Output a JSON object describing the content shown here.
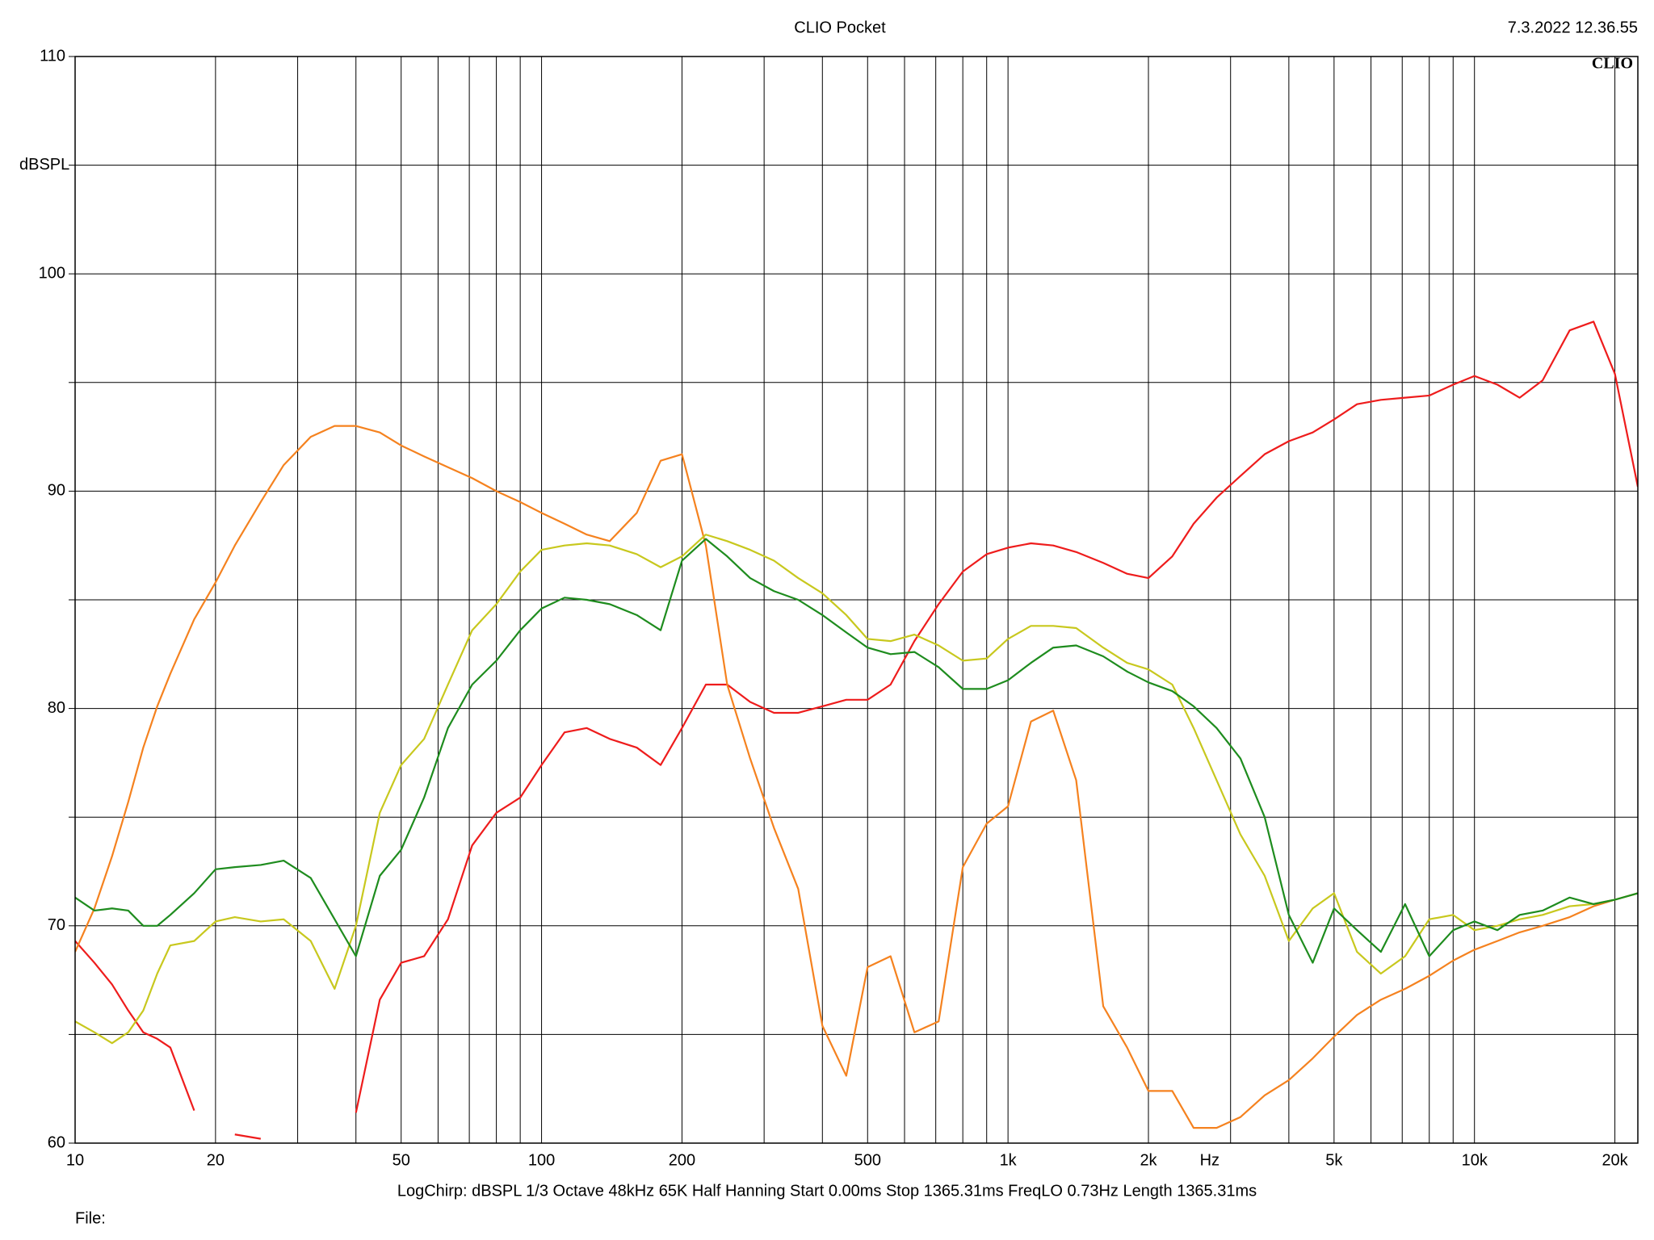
{
  "chart_data": {
    "type": "line",
    "title": "CLIO Pocket",
    "date": "7.3.2022 12.36.55",
    "logo": "CLIO",
    "ylabel": "dBSPL",
    "xlabel": "Hz",
    "footer": "LogChirp:  dBSPL   1/3 Octave   48kHz   65K   Half Hanning   Start 0.00ms    Stop 1365.31ms    FreqLO 0.73Hz    Length 1365.31ms",
    "file_label": "File:",
    "xscale": "log",
    "grid": true,
    "xlim": [
      10,
      22400
    ],
    "ylim": [
      60,
      110
    ],
    "yticks": [
      60,
      70,
      80,
      90,
      100,
      110
    ],
    "y_minor_grid": [
      65,
      75,
      85,
      95,
      105
    ],
    "xticks": [
      10,
      20,
      50,
      100,
      200,
      500,
      {
        "value": 1000,
        "label": "1k"
      },
      {
        "value": 2000,
        "label": "2k"
      },
      {
        "value": 5000,
        "label": "5k"
      },
      {
        "value": 10000,
        "label": "10k"
      },
      {
        "value": 20000,
        "label": "20k"
      }
    ],
    "x_minor_grid": [
      30,
      40,
      60,
      70,
      80,
      90,
      300,
      400,
      600,
      700,
      800,
      900,
      3000,
      4000,
      6000,
      7000,
      8000,
      9000
    ],
    "x": [
      10,
      11,
      12,
      13,
      14,
      15,
      16,
      18,
      20,
      22,
      25,
      28,
      32,
      36,
      40,
      45,
      50,
      56,
      63,
      71,
      80,
      90,
      100,
      112,
      125,
      140,
      160,
      180,
      200,
      225,
      250,
      280,
      315,
      355,
      400,
      450,
      500,
      560,
      630,
      710,
      800,
      900,
      1000,
      1120,
      1250,
      1400,
      1600,
      1800,
      2000,
      2250,
      2500,
      2800,
      3150,
      3550,
      4000,
      4500,
      5000,
      5600,
      6300,
      7100,
      8000,
      9000,
      10000,
      11200,
      12500,
      14000,
      16000,
      18000,
      20000,
      22400
    ],
    "series": [
      {
        "color": "#ee1c1c",
        "values": [
          69.3,
          68.3,
          67.3,
          66.1,
          65.1,
          64.8,
          64.4,
          61.5,
          null,
          60.4,
          60.2,
          null,
          null,
          null,
          61.4,
          66.6,
          68.3,
          68.6,
          70.3,
          73.7,
          75.2,
          75.9,
          77.4,
          78.9,
          79.1,
          78.6,
          78.2,
          77.4,
          79.1,
          81.1,
          81.1,
          80.3,
          79.8,
          79.8,
          80.1,
          80.4,
          80.4,
          81.1,
          83.1,
          84.8,
          86.3,
          87.1,
          87.4,
          87.6,
          87.5,
          87.2,
          86.7,
          86.2,
          86.0,
          87.0,
          88.5,
          89.7,
          90.7,
          91.7,
          92.3,
          92.7,
          93.3,
          94.0,
          94.2,
          94.3,
          94.4,
          94.9,
          95.3,
          94.9,
          94.3,
          95.1,
          97.4,
          97.8,
          95.4,
          90.2
        ]
      },
      {
        "color": "#f5821f",
        "values": [
          68.8,
          70.8,
          73.2,
          75.7,
          78.2,
          80.1,
          81.6,
          84.1,
          85.8,
          87.5,
          89.5,
          91.2,
          92.5,
          93.0,
          93.0,
          92.7,
          92.1,
          91.6,
          91.1,
          90.6,
          90.0,
          89.5,
          89.0,
          88.5,
          88.0,
          87.7,
          89.0,
          91.4,
          91.7,
          87.5,
          81.1,
          77.7,
          74.5,
          71.7,
          65.4,
          63.1,
          68.1,
          68.6,
          65.1,
          65.6,
          72.7,
          74.7,
          75.5,
          79.4,
          79.9,
          76.7,
          66.3,
          64.4,
          62.4,
          62.4,
          60.7,
          60.7,
          61.2,
          62.2,
          62.9,
          63.9,
          64.9,
          65.9,
          66.6,
          67.1,
          67.7,
          68.4,
          68.9,
          69.3,
          69.7,
          70.0,
          70.4,
          70.9,
          71.2,
          71.5
        ]
      },
      {
        "color": "#c8c81e",
        "values": [
          65.6,
          65.1,
          64.6,
          65.1,
          66.1,
          67.8,
          69.1,
          69.3,
          70.2,
          70.4,
          70.2,
          70.3,
          69.3,
          67.1,
          70.0,
          75.2,
          77.4,
          78.6,
          81.1,
          83.6,
          84.8,
          86.3,
          87.3,
          87.5,
          87.6,
          87.5,
          87.1,
          86.5,
          87.0,
          88.0,
          87.7,
          87.3,
          86.8,
          86.0,
          85.3,
          84.3,
          83.2,
          83.1,
          83.4,
          82.9,
          82.2,
          82.3,
          83.2,
          83.8,
          83.8,
          83.7,
          82.8,
          82.1,
          81.8,
          81.1,
          79.1,
          76.7,
          74.2,
          72.3,
          69.3,
          70.8,
          71.5,
          68.8,
          67.8,
          68.6,
          70.3,
          70.5,
          69.8,
          70.0,
          70.3,
          70.5,
          70.9,
          71.0,
          71.2,
          71.5
        ]
      },
      {
        "color": "#1e8c1e",
        "values": [
          71.3,
          70.7,
          70.8,
          70.7,
          70.0,
          70.0,
          70.5,
          71.5,
          72.6,
          72.7,
          72.8,
          73.0,
          72.2,
          70.3,
          68.6,
          72.3,
          73.5,
          75.9,
          79.1,
          81.1,
          82.2,
          83.6,
          84.6,
          85.1,
          85.0,
          84.8,
          84.3,
          83.6,
          86.8,
          87.8,
          87.0,
          86.0,
          85.4,
          85.0,
          84.3,
          83.5,
          82.8,
          82.5,
          82.6,
          81.9,
          80.9,
          80.9,
          81.3,
          82.1,
          82.8,
          82.9,
          82.4,
          81.7,
          81.2,
          80.8,
          80.1,
          79.1,
          77.7,
          75.0,
          70.5,
          68.3,
          70.8,
          69.8,
          68.8,
          71.0,
          68.6,
          69.8,
          70.2,
          69.8,
          70.5,
          70.7,
          71.3,
          71.0,
          71.2,
          71.5
        ]
      }
    ]
  }
}
